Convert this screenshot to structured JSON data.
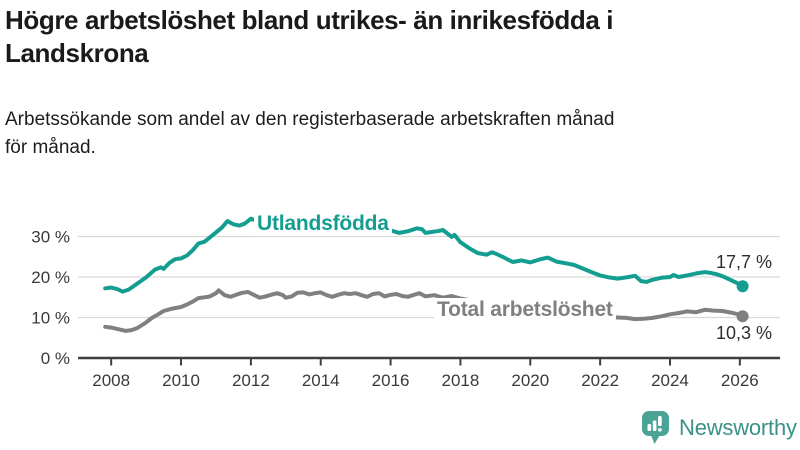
{
  "header": {
    "title": "Högre arbetslöshet bland utrikes- än inrikesfödda i\nLandskrona",
    "subtitle": "Arbetssökande som andel av den registerbaserade arbetskraften månad\nför månad."
  },
  "chart_data": {
    "type": "line",
    "title": "Högre arbetslöshet bland utrikes- än inrikesfödda i Landskrona",
    "subtitle": "Arbetssökande som andel av den registerbaserade arbetskraften månad för månad.",
    "grid": true,
    "x_axis": {
      "range": [
        2007.05,
        2027.15
      ],
      "ticks": [
        2008,
        2010,
        2012,
        2014,
        2016,
        2018,
        2020,
        2022,
        2024,
        2026
      ],
      "tick_labels": [
        "2008",
        "2010",
        "2012",
        "2014",
        "2016",
        "2018",
        "2020",
        "2022",
        "2024",
        "2026"
      ]
    },
    "y_axis": {
      "range": [
        0,
        37
      ],
      "unit": "%",
      "ticks": [
        0,
        10,
        20,
        30
      ],
      "tick_labels": [
        "0 %",
        "10 %",
        "20 %",
        "30 %"
      ]
    },
    "series": [
      {
        "name": "Utlandsfödda",
        "color": "#149E91",
        "end_value": 17.7,
        "end_label": "17,7 %",
        "points": [
          [
            2007.83,
            17.2
          ],
          [
            2008.0,
            17.4
          ],
          [
            2008.17,
            17.0
          ],
          [
            2008.33,
            16.4
          ],
          [
            2008.5,
            16.9
          ],
          [
            2008.75,
            18.4
          ],
          [
            2009.0,
            19.9
          ],
          [
            2009.25,
            21.8
          ],
          [
            2009.42,
            22.4
          ],
          [
            2009.5,
            22.0
          ],
          [
            2009.67,
            23.5
          ],
          [
            2009.83,
            24.4
          ],
          [
            2010.0,
            24.6
          ],
          [
            2010.17,
            25.3
          ],
          [
            2010.33,
            26.6
          ],
          [
            2010.5,
            28.3
          ],
          [
            2010.67,
            28.7
          ],
          [
            2010.83,
            29.8
          ],
          [
            2011.0,
            31.0
          ],
          [
            2011.17,
            32.2
          ],
          [
            2011.33,
            33.8
          ],
          [
            2011.5,
            33.0
          ],
          [
            2011.67,
            32.7
          ],
          [
            2011.83,
            33.2
          ],
          [
            2012.0,
            34.4
          ],
          [
            2012.17,
            33.9
          ],
          [
            2012.33,
            33.4
          ],
          [
            2012.5,
            32.9
          ],
          [
            2012.75,
            32.3
          ],
          [
            2013.0,
            32.0
          ],
          [
            2013.25,
            31.7
          ],
          [
            2013.5,
            31.5
          ],
          [
            2013.75,
            31.4
          ],
          [
            2014.0,
            31.6
          ],
          [
            2014.25,
            31.3
          ],
          [
            2014.5,
            31.5
          ],
          [
            2014.75,
            31.2
          ],
          [
            2015.0,
            31.4
          ],
          [
            2015.25,
            31.6
          ],
          [
            2015.5,
            31.3
          ],
          [
            2015.75,
            31.5
          ],
          [
            2016.0,
            31.5
          ],
          [
            2016.25,
            30.9
          ],
          [
            2016.5,
            31.3
          ],
          [
            2016.75,
            32.0
          ],
          [
            2016.9,
            31.8
          ],
          [
            2017.0,
            30.9
          ],
          [
            2017.17,
            31.1
          ],
          [
            2017.33,
            31.3
          ],
          [
            2017.5,
            31.6
          ],
          [
            2017.75,
            29.9
          ],
          [
            2017.83,
            30.4
          ],
          [
            2018.0,
            28.6
          ],
          [
            2018.25,
            27.1
          ],
          [
            2018.5,
            25.9
          ],
          [
            2018.75,
            25.5
          ],
          [
            2018.9,
            26.1
          ],
          [
            2019.0,
            25.8
          ],
          [
            2019.25,
            24.8
          ],
          [
            2019.5,
            23.7
          ],
          [
            2019.75,
            24.1
          ],
          [
            2020.0,
            23.6
          ],
          [
            2020.25,
            24.3
          ],
          [
            2020.5,
            24.8
          ],
          [
            2020.75,
            23.8
          ],
          [
            2021.0,
            23.4
          ],
          [
            2021.25,
            23.0
          ],
          [
            2021.5,
            22.1
          ],
          [
            2021.75,
            21.2
          ],
          [
            2022.0,
            20.4
          ],
          [
            2022.25,
            19.9
          ],
          [
            2022.5,
            19.6
          ],
          [
            2022.75,
            19.9
          ],
          [
            2023.0,
            20.3
          ],
          [
            2023.17,
            19.0
          ],
          [
            2023.33,
            18.8
          ],
          [
            2023.5,
            19.3
          ],
          [
            2023.75,
            19.8
          ],
          [
            2024.0,
            20.0
          ],
          [
            2024.1,
            20.5
          ],
          [
            2024.25,
            20.0
          ],
          [
            2024.5,
            20.4
          ],
          [
            2024.75,
            20.9
          ],
          [
            2025.0,
            21.2
          ],
          [
            2025.17,
            21.0
          ],
          [
            2025.33,
            20.7
          ],
          [
            2025.5,
            20.2
          ],
          [
            2025.75,
            19.2
          ],
          [
            2026.0,
            18.2
          ],
          [
            2026.08,
            17.7
          ]
        ]
      },
      {
        "name": "Total arbetslöshet",
        "color": "#808080",
        "end_value": 10.3,
        "end_label": "10,3 %",
        "points": [
          [
            2007.83,
            7.7
          ],
          [
            2008.0,
            7.5
          ],
          [
            2008.25,
            7.0
          ],
          [
            2008.42,
            6.7
          ],
          [
            2008.58,
            6.9
          ],
          [
            2008.75,
            7.4
          ],
          [
            2009.0,
            8.8
          ],
          [
            2009.17,
            9.9
          ],
          [
            2009.33,
            10.7
          ],
          [
            2009.5,
            11.6
          ],
          [
            2009.75,
            12.2
          ],
          [
            2010.0,
            12.6
          ],
          [
            2010.17,
            13.2
          ],
          [
            2010.33,
            13.9
          ],
          [
            2010.5,
            14.8
          ],
          [
            2010.67,
            15.0
          ],
          [
            2010.83,
            15.2
          ],
          [
            2011.0,
            16.0
          ],
          [
            2011.08,
            16.7
          ],
          [
            2011.25,
            15.5
          ],
          [
            2011.42,
            15.1
          ],
          [
            2011.58,
            15.6
          ],
          [
            2011.75,
            16.1
          ],
          [
            2011.92,
            16.3
          ],
          [
            2012.08,
            15.6
          ],
          [
            2012.25,
            14.9
          ],
          [
            2012.42,
            15.2
          ],
          [
            2012.58,
            15.6
          ],
          [
            2012.75,
            16.0
          ],
          [
            2012.92,
            15.5
          ],
          [
            2013.0,
            14.9
          ],
          [
            2013.17,
            15.2
          ],
          [
            2013.33,
            16.1
          ],
          [
            2013.5,
            16.2
          ],
          [
            2013.67,
            15.7
          ],
          [
            2013.83,
            16.0
          ],
          [
            2014.0,
            16.2
          ],
          [
            2014.17,
            15.5
          ],
          [
            2014.33,
            15.1
          ],
          [
            2014.5,
            15.6
          ],
          [
            2014.67,
            16.0
          ],
          [
            2014.83,
            15.8
          ],
          [
            2015.0,
            16.0
          ],
          [
            2015.17,
            15.5
          ],
          [
            2015.33,
            15.1
          ],
          [
            2015.5,
            15.8
          ],
          [
            2015.67,
            16.0
          ],
          [
            2015.83,
            15.2
          ],
          [
            2016.0,
            15.6
          ],
          [
            2016.17,
            15.8
          ],
          [
            2016.33,
            15.3
          ],
          [
            2016.5,
            15.1
          ],
          [
            2016.67,
            15.6
          ],
          [
            2016.83,
            16.0
          ],
          [
            2017.0,
            15.2
          ],
          [
            2017.25,
            15.5
          ],
          [
            2017.5,
            14.9
          ],
          [
            2017.75,
            15.3
          ],
          [
            2018.0,
            14.7
          ],
          [
            2018.25,
            14.3
          ],
          [
            2018.5,
            13.9
          ],
          [
            2018.75,
            13.5
          ],
          [
            2019.0,
            13.2
          ],
          [
            2019.25,
            12.9
          ],
          [
            2019.5,
            12.7
          ],
          [
            2019.75,
            12.5
          ],
          [
            2020.0,
            12.4
          ],
          [
            2020.25,
            12.6
          ],
          [
            2020.5,
            12.4
          ],
          [
            2020.75,
            12.1
          ],
          [
            2021.0,
            11.7
          ],
          [
            2021.25,
            11.2
          ],
          [
            2021.5,
            10.8
          ],
          [
            2021.75,
            10.5
          ],
          [
            2022.0,
            10.2
          ],
          [
            2022.25,
            10.1
          ],
          [
            2022.5,
            10.0
          ],
          [
            2022.75,
            9.9
          ],
          [
            2023.0,
            9.6
          ],
          [
            2023.25,
            9.7
          ],
          [
            2023.5,
            9.9
          ],
          [
            2023.75,
            10.3
          ],
          [
            2024.0,
            10.8
          ],
          [
            2024.25,
            11.1
          ],
          [
            2024.5,
            11.5
          ],
          [
            2024.75,
            11.3
          ],
          [
            2025.0,
            11.9
          ],
          [
            2025.25,
            11.7
          ],
          [
            2025.5,
            11.6
          ],
          [
            2025.75,
            11.2
          ],
          [
            2026.0,
            10.7
          ],
          [
            2026.08,
            10.3
          ]
        ]
      }
    ],
    "legend_position": "inline-labels"
  },
  "branding": {
    "logo_text": "Newsworthy",
    "logo_text_color": "#3A9185",
    "logo_icon_color": "#4BA396"
  }
}
